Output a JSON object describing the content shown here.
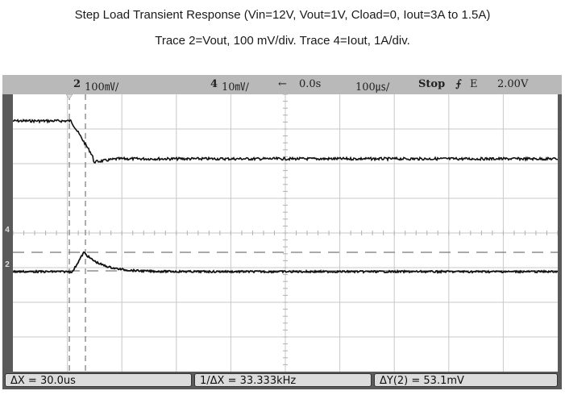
{
  "caption": {
    "line1": "Step Load Transient Response (Vin=12V, Vout=1V, Cload=0, Iout=3A to 1.5A)",
    "line2": "Trace 2=Vout, 100 mV/div. Trace 4=Iout, 1A/div."
  },
  "status": {
    "ch2_number": "2",
    "ch2_scale": "100㎷/",
    "ch4_number": "4",
    "ch4_scale": "10㎷/",
    "delay_arrow": "←",
    "delay_value": "0.0s",
    "timebase": "100㎲/",
    "run_state": "Stop",
    "trigger_icon": "falling-edge-trigger-icon",
    "trigger_glyph": "⨍",
    "trigger_mode": "E",
    "trigger_level": "2.00V"
  },
  "markers": {
    "ch4": "4",
    "ch2": "2"
  },
  "measurements": {
    "delta_x": "ΔX = 30.0us",
    "inverse_delta_x": "1/ΔX = 33.333kHz",
    "delta_y": "ΔY(2) = 53.1mV"
  },
  "colors": {
    "screen_bg": "#ffffff",
    "bezel": "#5a5a5a",
    "status_bg": "#b9b9b9",
    "trace": "#111111",
    "grid": "#c8c8c8"
  }
}
